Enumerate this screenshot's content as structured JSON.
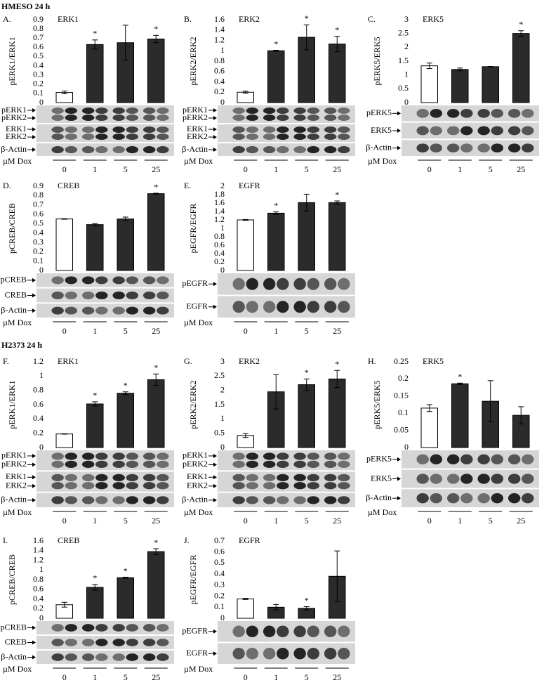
{
  "sections": [
    "HMESO 24 h",
    "H2373 24 h"
  ],
  "chart_data": [
    {
      "type": "bar",
      "panel": "A.",
      "title": "ERK1",
      "ylabel": "pERK1/ERK1",
      "xlabel": "µM Dox",
      "categories": [
        "0",
        "1",
        "5",
        "25"
      ],
      "values": [
        0.11,
        0.63,
        0.65,
        0.69
      ],
      "errors": [
        0.015,
        0.05,
        0.19,
        0.04
      ],
      "markers": [
        null,
        "*",
        null,
        "*"
      ],
      "colors": [
        "#ffffff",
        "#2b2b2b",
        "#2b2b2b",
        "#2b2b2b"
      ],
      "edgecolor": "#000000",
      "ylim": [
        0,
        0.9
      ],
      "yticks": [
        0,
        0.1,
        0.2,
        0.3,
        0.4,
        0.5,
        0.6,
        0.7,
        0.8,
        0.9
      ],
      "blots": [
        [
          "pERK1",
          "pERK2"
        ],
        [
          "ERK1",
          "ERK2"
        ],
        [
          "β-Actin"
        ]
      ]
    },
    {
      "type": "bar",
      "panel": "B.",
      "title": "ERK2",
      "ylabel": "pERK2/ERK2",
      "xlabel": "µM Dox",
      "categories": [
        "0",
        "1",
        "5",
        "25"
      ],
      "values": [
        0.2,
        1.0,
        1.26,
        1.13
      ],
      "errors": [
        0.02,
        0.01,
        0.24,
        0.15
      ],
      "markers": [
        null,
        "*",
        "*",
        "*"
      ],
      "colors": [
        "#ffffff",
        "#2b2b2b",
        "#2b2b2b",
        "#2b2b2b"
      ],
      "edgecolor": "#000000",
      "ylim": [
        0,
        1.6
      ],
      "yticks": [
        0,
        0.2,
        0.4,
        0.6,
        0.8,
        1,
        1.2,
        1.4,
        1.6
      ],
      "blots": [
        [
          "pERK1",
          "pERK2"
        ],
        [
          "ERK1",
          "ERK2"
        ],
        [
          "β-Actin"
        ]
      ]
    },
    {
      "type": "bar",
      "panel": "C.",
      "title": "ERK5",
      "ylabel": "pERK5/ERK5",
      "xlabel": "µM Dox",
      "categories": [
        "0",
        "1",
        "5",
        "25"
      ],
      "values": [
        1.33,
        1.2,
        1.3,
        2.5
      ],
      "errors": [
        0.1,
        0.05,
        0.01,
        0.1
      ],
      "markers": [
        null,
        null,
        null,
        "*"
      ],
      "colors": [
        "#ffffff",
        "#2b2b2b",
        "#2b2b2b",
        "#2b2b2b"
      ],
      "edgecolor": "#000000",
      "ylim": [
        0,
        3
      ],
      "yticks": [
        0,
        0.5,
        1,
        1.5,
        2,
        2.5,
        3
      ],
      "blots": [
        [
          "pERK5"
        ],
        [
          "ERK5"
        ],
        [
          "β-Actin"
        ]
      ]
    },
    {
      "type": "bar",
      "panel": "D.",
      "title": "CREB",
      "ylabel": "pCREB/CREB",
      "xlabel": "µM Dox",
      "categories": [
        "0",
        "1",
        "5",
        "25"
      ],
      "values": [
        0.55,
        0.49,
        0.55,
        0.82
      ],
      "errors": [
        0.003,
        0.01,
        0.02,
        0.005
      ],
      "markers": [
        null,
        null,
        null,
        "*"
      ],
      "colors": [
        "#ffffff",
        "#2b2b2b",
        "#2b2b2b",
        "#2b2b2b"
      ],
      "edgecolor": "#000000",
      "ylim": [
        0,
        0.9
      ],
      "yticks": [
        0,
        0.1,
        0.2,
        0.3,
        0.4,
        0.5,
        0.6,
        0.7,
        0.8,
        0.9
      ],
      "blots": [
        [
          "pCREB"
        ],
        [
          "CREB"
        ],
        [
          "β-Actin"
        ]
      ]
    },
    {
      "type": "bar",
      "panel": "E.",
      "title": "EGFR",
      "ylabel": "pEGFR/EGFR",
      "xlabel": "µM Dox",
      "categories": [
        "0",
        "1",
        "5",
        "25"
      ],
      "values": [
        1.2,
        1.36,
        1.61,
        1.61
      ],
      "errors": [
        0.01,
        0.03,
        0.2,
        0.04
      ],
      "markers": [
        null,
        "*",
        null,
        "*"
      ],
      "colors": [
        "#ffffff",
        "#2b2b2b",
        "#2b2b2b",
        "#2b2b2b"
      ],
      "edgecolor": "#000000",
      "ylim": [
        0,
        2
      ],
      "yticks": [
        0,
        0.2,
        0.4,
        0.6,
        0.8,
        1,
        1.2,
        1.4,
        1.6,
        1.8,
        2
      ],
      "blots": [
        [
          "pEGFR"
        ],
        [
          "EGFR"
        ]
      ]
    },
    {
      "type": "bar",
      "panel": "F.",
      "title": "ERK1",
      "ylabel": "pERK1/ERK1",
      "xlabel": "µM Dox",
      "categories": [
        "0",
        "1",
        "5",
        "25"
      ],
      "values": [
        0.19,
        0.61,
        0.76,
        0.95
      ],
      "errors": [
        0.003,
        0.03,
        0.02,
        0.08
      ],
      "markers": [
        null,
        "*",
        "*",
        "*"
      ],
      "colors": [
        "#ffffff",
        "#2b2b2b",
        "#2b2b2b",
        "#2b2b2b"
      ],
      "edgecolor": "#000000",
      "ylim": [
        0,
        1.2
      ],
      "yticks": [
        0,
        0.2,
        0.4,
        0.6,
        0.8,
        1,
        1.2
      ],
      "blots": [
        [
          "pERK1",
          "pERK2"
        ],
        [
          "ERK1",
          "ERK2"
        ],
        [
          "β-Actin"
        ]
      ]
    },
    {
      "type": "bar",
      "panel": "G.",
      "title": "ERK2",
      "ylabel": "pERK2/ERK2",
      "xlabel": "µM Dox",
      "categories": [
        "0",
        "1",
        "5",
        "25"
      ],
      "values": [
        0.42,
        1.95,
        2.2,
        2.4
      ],
      "errors": [
        0.07,
        0.6,
        0.2,
        0.3
      ],
      "markers": [
        null,
        null,
        "*",
        "*"
      ],
      "colors": [
        "#ffffff",
        "#2b2b2b",
        "#2b2b2b",
        "#2b2b2b"
      ],
      "edgecolor": "#000000",
      "ylim": [
        0,
        3
      ],
      "yticks": [
        0,
        0.5,
        1,
        1.5,
        2,
        2.5,
        3
      ],
      "blots": [
        [
          "pERK1",
          "pERK2"
        ],
        [
          "ERK1",
          "ERK2"
        ],
        [
          "β-Actin"
        ]
      ]
    },
    {
      "type": "bar",
      "panel": "H.",
      "title": "ERK5",
      "ylabel": "pERK5/ERK5",
      "xlabel": "µM Dox",
      "categories": [
        "0",
        "1",
        "5",
        "25"
      ],
      "values": [
        0.115,
        0.186,
        0.135,
        0.094
      ],
      "errors": [
        0.01,
        0.002,
        0.06,
        0.025
      ],
      "markers": [
        null,
        "*",
        null,
        null
      ],
      "colors": [
        "#ffffff",
        "#2b2b2b",
        "#2b2b2b",
        "#2b2b2b"
      ],
      "edgecolor": "#000000",
      "ylim": [
        0,
        0.25
      ],
      "yticks": [
        0,
        0.05,
        0.1,
        0.15,
        0.2,
        0.25
      ],
      "blots": [
        [
          "pERK5"
        ],
        [
          "ERK5"
        ],
        [
          "β-Actin"
        ]
      ]
    },
    {
      "type": "bar",
      "panel": "I.",
      "title": "CREB",
      "ylabel": "pCREB/CREB",
      "xlabel": "µM Dox",
      "categories": [
        "0",
        "1",
        "5",
        "25"
      ],
      "values": [
        0.28,
        0.64,
        0.84,
        1.38
      ],
      "errors": [
        0.05,
        0.06,
        0.01,
        0.06
      ],
      "markers": [
        null,
        "*",
        "*",
        "*"
      ],
      "colors": [
        "#ffffff",
        "#2b2b2b",
        "#2b2b2b",
        "#2b2b2b"
      ],
      "edgecolor": "#000000",
      "ylim": [
        0,
        1.6
      ],
      "yticks": [
        0,
        0.2,
        0.4,
        0.6,
        0.8,
        1,
        1.2,
        1.4,
        1.6
      ],
      "blots": [
        [
          "pCREB"
        ],
        [
          "CREB"
        ],
        [
          "β-Actin"
        ]
      ]
    },
    {
      "type": "bar",
      "panel": "J.",
      "title": "EGFR",
      "ylabel": "pEGFR/EGFR",
      "xlabel": "µM Dox",
      "categories": [
        "0",
        "1",
        "5",
        "25"
      ],
      "values": [
        0.175,
        0.1,
        0.09,
        0.38
      ],
      "errors": [
        0.005,
        0.025,
        0.015,
        0.23
      ],
      "markers": [
        null,
        null,
        "*",
        null
      ],
      "colors": [
        "#ffffff",
        "#2b2b2b",
        "#2b2b2b",
        "#2b2b2b"
      ],
      "edgecolor": "#000000",
      "ylim": [
        0,
        0.7
      ],
      "yticks": [
        0,
        0.1,
        0.2,
        0.3,
        0.4,
        0.5,
        0.6,
        0.7
      ],
      "blots": [
        [
          "pEGFR"
        ],
        [
          "EGFR"
        ]
      ]
    }
  ]
}
